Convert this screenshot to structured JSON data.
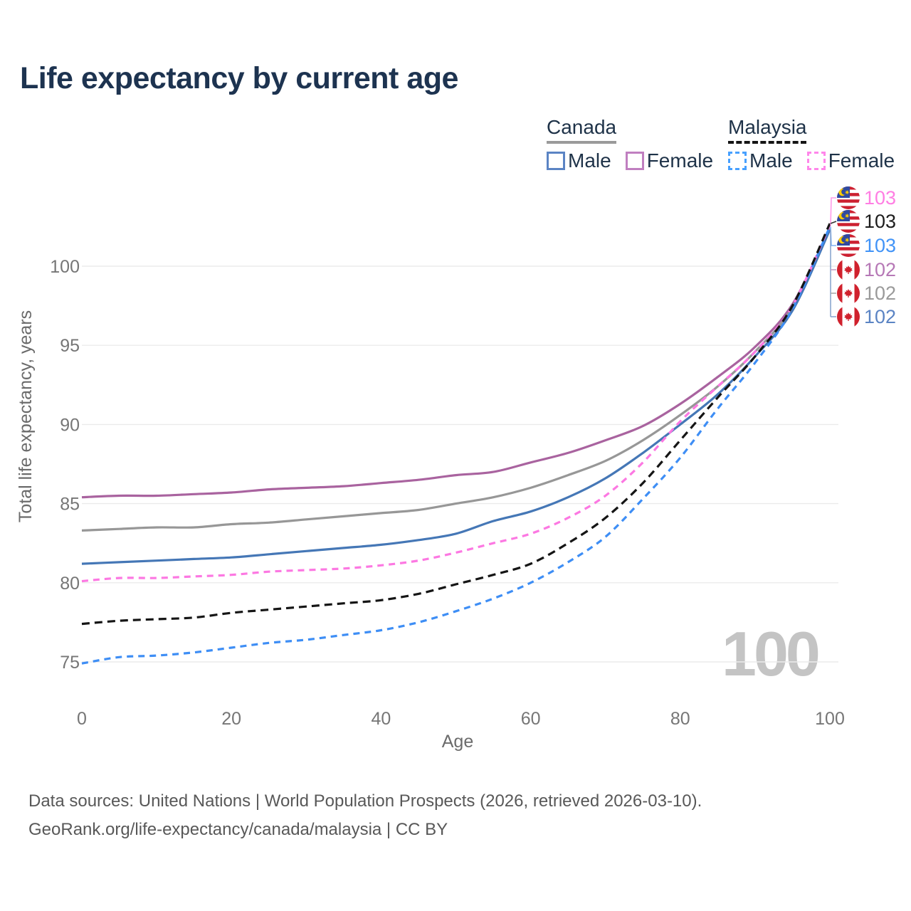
{
  "title": "Life expectancy by current age",
  "legend": {
    "groups": [
      {
        "name": "Canada",
        "dashed": false,
        "underline_color": "#9a9a9a",
        "items": [
          {
            "label": "Male",
            "swatch_color": "#5b84c4"
          },
          {
            "label": "Female",
            "swatch_color": "#c07fc0"
          }
        ]
      },
      {
        "name": "Malaysia",
        "dashed": true,
        "underline_color": "#151515",
        "items": [
          {
            "label": "Male",
            "swatch_color": "#47a0ff"
          },
          {
            "label": "Female",
            "swatch_color": "#ff86ea"
          }
        ]
      }
    ]
  },
  "watermark": "100",
  "footer": {
    "line1": "Data sources: United Nations | World Population Prospects (2026, retrieved 2026-03-10).",
    "line2": "GeoRank.org/life-expectancy/canada/malaysia | CC BY"
  },
  "chart_data": {
    "type": "line",
    "title": "Life expectancy by current age",
    "xlabel": "Age",
    "ylabel": "Total life expectancy, years",
    "x_ticks": [
      0,
      20,
      40,
      60,
      80,
      100
    ],
    "y_ticks": [
      75,
      80,
      85,
      90,
      95,
      100
    ],
    "xlim": [
      0,
      100
    ],
    "ylim": [
      73,
      104
    ],
    "grid": "horizontal",
    "ages": [
      0,
      5,
      10,
      15,
      20,
      25,
      30,
      35,
      40,
      45,
      50,
      55,
      60,
      65,
      70,
      75,
      80,
      85,
      90,
      95,
      100
    ],
    "series": [
      {
        "id": "canada_female",
        "name": "Canada Female",
        "color": "#a9639f",
        "dashed": false,
        "values": [
          85.4,
          85.5,
          85.5,
          85.6,
          85.7,
          85.9,
          86.0,
          86.1,
          86.3,
          86.5,
          86.8,
          87.0,
          87.6,
          88.2,
          89.0,
          89.9,
          91.3,
          93.0,
          94.9,
          97.6,
          102.4
        ],
        "end_label": "102",
        "end_label_color": "#b678b6",
        "flag": "canada"
      },
      {
        "id": "canada_total",
        "name": "Canada Both sexes",
        "color": "#979797",
        "dashed": false,
        "values": [
          83.3,
          83.4,
          83.5,
          83.5,
          83.7,
          83.8,
          84.0,
          84.2,
          84.4,
          84.6,
          85.0,
          85.4,
          86.0,
          86.8,
          87.7,
          89.0,
          90.6,
          92.4,
          94.6,
          97.4,
          102.4
        ],
        "end_label": "102",
        "end_label_color": "#9a9a9a",
        "flag": "canada"
      },
      {
        "id": "canada_male",
        "name": "Canada Male",
        "color": "#4577b6",
        "dashed": false,
        "values": [
          81.2,
          81.3,
          81.4,
          81.5,
          81.6,
          81.8,
          82.0,
          82.2,
          82.4,
          82.7,
          83.1,
          83.9,
          84.5,
          85.4,
          86.6,
          88.2,
          90.0,
          91.9,
          94.3,
          97.2,
          102.3
        ],
        "end_label": "102",
        "end_label_color": "#5b84c4",
        "flag": "canada"
      },
      {
        "id": "malaysia_female",
        "name": "Malaysia Female",
        "color": "#fc78e2",
        "dashed": true,
        "values": [
          80.1,
          80.3,
          80.3,
          80.4,
          80.5,
          80.7,
          80.8,
          80.9,
          81.1,
          81.4,
          81.9,
          82.5,
          83.1,
          84.1,
          85.5,
          87.6,
          90.2,
          92.4,
          94.6,
          97.5,
          102.6
        ],
        "end_label": "103",
        "end_label_color": "#ff7ee3",
        "flag": "malaysia"
      },
      {
        "id": "malaysia_male",
        "name": "Malaysia Male",
        "color": "#3e8ef5",
        "dashed": true,
        "values": [
          74.9,
          75.3,
          75.4,
          75.6,
          75.9,
          76.2,
          76.4,
          76.7,
          77.0,
          77.5,
          78.2,
          79.0,
          80.0,
          81.3,
          82.9,
          85.3,
          87.9,
          91.0,
          93.9,
          97.3,
          102.5
        ],
        "end_label": "103",
        "end_label_color": "#4193f7",
        "flag": "malaysia"
      },
      {
        "id": "malaysia_total",
        "name": "Malaysia Both sexes",
        "color": "#151515",
        "dashed": true,
        "values": [
          77.4,
          77.6,
          77.7,
          77.8,
          78.1,
          78.3,
          78.5,
          78.7,
          78.9,
          79.3,
          79.9,
          80.5,
          81.2,
          82.5,
          84.1,
          86.3,
          89.0,
          91.7,
          94.3,
          97.5,
          102.7
        ],
        "end_label": "103",
        "end_label_color": "#1c1c1c",
        "flag": "malaysia"
      }
    ],
    "right_labels_top_to_bottom": [
      "malaysia_female",
      "malaysia_total",
      "malaysia_male",
      "canada_female",
      "canada_total",
      "canada_male"
    ]
  }
}
